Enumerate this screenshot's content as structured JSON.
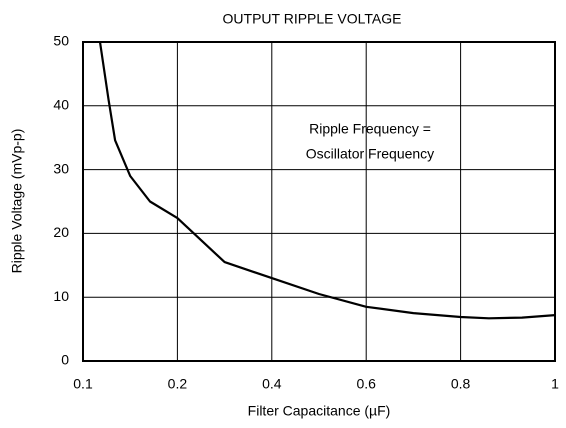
{
  "chart_data": {
    "type": "line",
    "title": "OUTPUT RIPPLE VOLTAGE",
    "x_label": "Filter Capacitance (µF)",
    "y_label": "Ripple Voltage (mVp-p)",
    "annotations": [
      "Ripple Frequency =",
      "Oscillator Frequency"
    ],
    "x": [
      0.118,
      0.127,
      0.134,
      0.15,
      0.171,
      0.2,
      0.3,
      0.4,
      0.5,
      0.6,
      0.7,
      0.8,
      0.86,
      0.93,
      1
    ],
    "values": [
      50,
      41,
      34.6,
      29,
      25,
      22.4,
      15.5,
      13,
      10.5,
      8.5,
      7.5,
      6.9,
      6.7,
      6.8,
      7.2
    ],
    "color": "#000000",
    "xlim": [
      0.1,
      1
    ],
    "ylim": [
      0,
      50
    ],
    "xticks": [
      0.1,
      0.2,
      0.4,
      0.6,
      0.8,
      1
    ],
    "yticks": [
      0,
      10,
      20,
      30,
      40,
      50
    ],
    "grid": true
  }
}
